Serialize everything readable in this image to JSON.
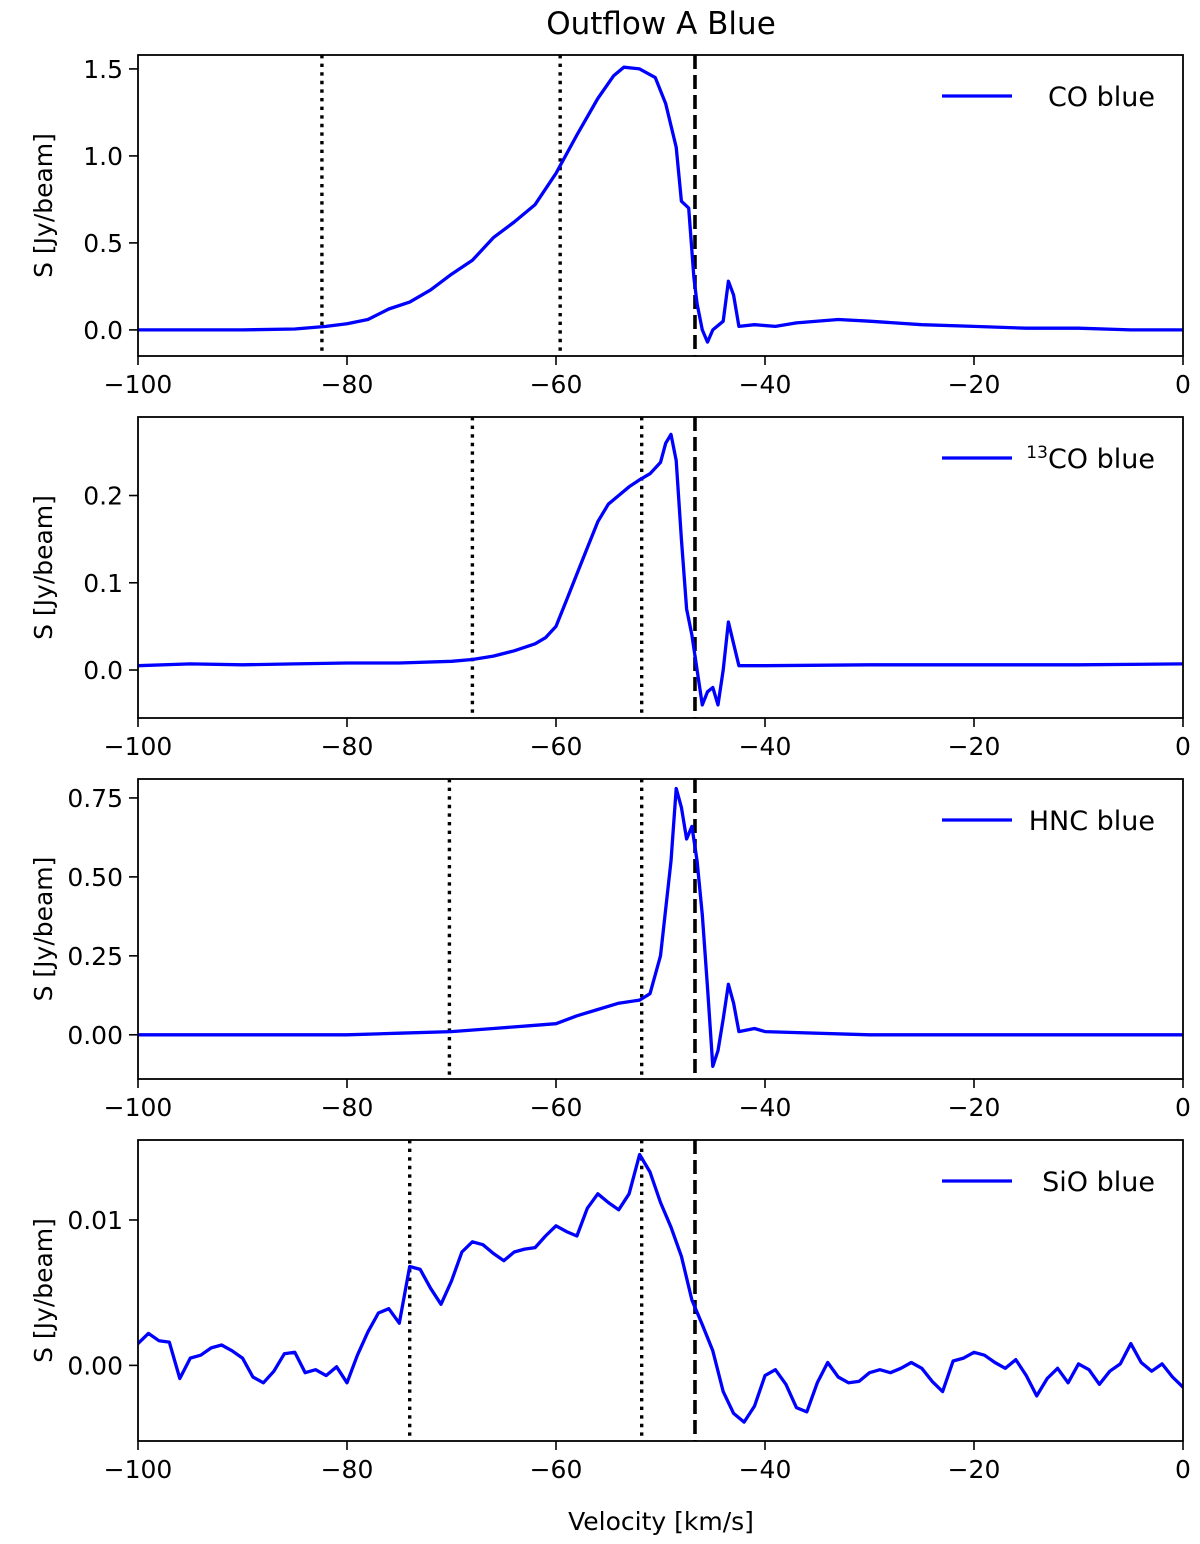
{
  "figure": {
    "title": "Outflow A Blue",
    "xlabel": "Velocity [km/s]"
  },
  "chart_data": [
    {
      "type": "line",
      "ylabel": "S [Jy/beam]",
      "xlim": [
        -100,
        0
      ],
      "ylim": [
        -0.15,
        1.58
      ],
      "x_ticks": [
        -100,
        -80,
        -60,
        -40,
        -20,
        0
      ],
      "x_tick_labels": [
        "−100",
        "−80",
        "−60",
        "−40",
        "−20",
        "0"
      ],
      "y_ticks": [
        0.0,
        0.5,
        1.0,
        1.5
      ],
      "y_tick_labels": [
        "0.0",
        "0.5",
        "1.0",
        "1.5"
      ],
      "legend_position": "top-right",
      "vlines": [
        {
          "x": -82.4,
          "style": "dotted"
        },
        {
          "x": -59.6,
          "style": "dotted"
        },
        {
          "x": -46.7,
          "style": "dashed"
        }
      ],
      "series": [
        {
          "name": "CO blue",
          "color": "#0000ff",
          "points": [
            [
              -100,
              0.0
            ],
            [
              -90,
              0.0
            ],
            [
              -85,
              0.005
            ],
            [
              -82,
              0.02
            ],
            [
              -80,
              0.035
            ],
            [
              -78,
              0.06
            ],
            [
              -76,
              0.12
            ],
            [
              -74,
              0.16
            ],
            [
              -72,
              0.23
            ],
            [
              -70,
              0.32
            ],
            [
              -68,
              0.4
            ],
            [
              -66,
              0.53
            ],
            [
              -64,
              0.62
            ],
            [
              -62,
              0.72
            ],
            [
              -60,
              0.9
            ],
            [
              -58,
              1.12
            ],
            [
              -56,
              1.33
            ],
            [
              -54.5,
              1.46
            ],
            [
              -53.5,
              1.51
            ],
            [
              -52,
              1.5
            ],
            [
              -50.5,
              1.45
            ],
            [
              -49.5,
              1.3
            ],
            [
              -48.5,
              1.05
            ],
            [
              -48,
              0.74
            ],
            [
              -47.3,
              0.7
            ],
            [
              -46.8,
              0.3
            ],
            [
              -46.5,
              0.15
            ],
            [
              -46,
              0.0
            ],
            [
              -45.5,
              -0.07
            ],
            [
              -45,
              0.0
            ],
            [
              -44,
              0.05
            ],
            [
              -43.5,
              0.28
            ],
            [
              -43,
              0.2
            ],
            [
              -42.5,
              0.02
            ],
            [
              -41,
              0.03
            ],
            [
              -39,
              0.02
            ],
            [
              -37,
              0.04
            ],
            [
              -33,
              0.06
            ],
            [
              -30,
              0.05
            ],
            [
              -25,
              0.03
            ],
            [
              -20,
              0.02
            ],
            [
              -15,
              0.01
            ],
            [
              -10,
              0.01
            ],
            [
              -5,
              0.0
            ],
            [
              0,
              0.0
            ]
          ]
        }
      ]
    },
    {
      "type": "line",
      "ylabel": "S [Jy/beam]",
      "xlim": [
        -100,
        0
      ],
      "ylim": [
        -0.055,
        0.29
      ],
      "x_ticks": [
        -100,
        -80,
        -60,
        -40,
        -20,
        0
      ],
      "x_tick_labels": [
        "−100",
        "−80",
        "−60",
        "−40",
        "−20",
        "0"
      ],
      "y_ticks": [
        0.0,
        0.1,
        0.2
      ],
      "y_tick_labels": [
        "0.0",
        "0.1",
        "0.2"
      ],
      "legend_position": "top-right",
      "vlines": [
        {
          "x": -68.0,
          "style": "dotted"
        },
        {
          "x": -51.8,
          "style": "dotted"
        },
        {
          "x": -46.7,
          "style": "dashed"
        }
      ],
      "series": [
        {
          "name": "<sup>13</sup>CO blue",
          "color": "#0000ff",
          "points": [
            [
              -100,
              0.005
            ],
            [
              -95,
              0.007
            ],
            [
              -90,
              0.006
            ],
            [
              -85,
              0.007
            ],
            [
              -80,
              0.008
            ],
            [
              -75,
              0.008
            ],
            [
              -70,
              0.01
            ],
            [
              -68,
              0.012
            ],
            [
              -66,
              0.016
            ],
            [
              -64,
              0.022
            ],
            [
              -62,
              0.03
            ],
            [
              -61,
              0.037
            ],
            [
              -60,
              0.05
            ],
            [
              -59,
              0.08
            ],
            [
              -58,
              0.11
            ],
            [
              -57,
              0.14
            ],
            [
              -56,
              0.17
            ],
            [
              -55,
              0.19
            ],
            [
              -54,
              0.2
            ],
            [
              -53,
              0.21
            ],
            [
              -52,
              0.218
            ],
            [
              -51,
              0.225
            ],
            [
              -50,
              0.238
            ],
            [
              -49.5,
              0.26
            ],
            [
              -49,
              0.27
            ],
            [
              -48.5,
              0.24
            ],
            [
              -48,
              0.15
            ],
            [
              -47.5,
              0.07
            ],
            [
              -47,
              0.04
            ],
            [
              -46.5,
              0.0
            ],
            [
              -46,
              -0.04
            ],
            [
              -45.5,
              -0.025
            ],
            [
              -45,
              -0.02
            ],
            [
              -44.5,
              -0.04
            ],
            [
              -44,
              0.0
            ],
            [
              -43.5,
              0.055
            ],
            [
              -43,
              0.03
            ],
            [
              -42.5,
              0.005
            ],
            [
              -40,
              0.005
            ],
            [
              -30,
              0.006
            ],
            [
              -20,
              0.006
            ],
            [
              -10,
              0.006
            ],
            [
              0,
              0.007
            ]
          ]
        }
      ]
    },
    {
      "type": "line",
      "ylabel": "S [Jy/beam]",
      "xlim": [
        -100,
        0
      ],
      "ylim": [
        -0.14,
        0.81
      ],
      "x_ticks": [
        -100,
        -80,
        -60,
        -40,
        -20,
        0
      ],
      "x_tick_labels": [
        "−100",
        "−80",
        "−60",
        "−40",
        "−20",
        "0"
      ],
      "y_ticks": [
        0.0,
        0.25,
        0.5,
        0.75
      ],
      "y_tick_labels": [
        "0.00",
        "0.25",
        "0.50",
        "0.75"
      ],
      "legend_position": "top-right",
      "vlines": [
        {
          "x": -70.2,
          "style": "dotted"
        },
        {
          "x": -51.8,
          "style": "dotted"
        },
        {
          "x": -46.7,
          "style": "dashed"
        }
      ],
      "series": [
        {
          "name": "HNC blue",
          "color": "#0000ff",
          "points": [
            [
              -100,
              0.0
            ],
            [
              -90,
              0.0
            ],
            [
              -80,
              0.0
            ],
            [
              -75,
              0.005
            ],
            [
              -70,
              0.01
            ],
            [
              -66,
              0.02
            ],
            [
              -62,
              0.03
            ],
            [
              -60,
              0.035
            ],
            [
              -58,
              0.06
            ],
            [
              -56,
              0.08
            ],
            [
              -54,
              0.1
            ],
            [
              -52,
              0.11
            ],
            [
              -51,
              0.13
            ],
            [
              -50,
              0.25
            ],
            [
              -49,
              0.55
            ],
            [
              -48.5,
              0.78
            ],
            [
              -48,
              0.72
            ],
            [
              -47.5,
              0.62
            ],
            [
              -47,
              0.66
            ],
            [
              -46.5,
              0.55
            ],
            [
              -46,
              0.38
            ],
            [
              -45.5,
              0.15
            ],
            [
              -45,
              -0.1
            ],
            [
              -44.5,
              -0.05
            ],
            [
              -44,
              0.05
            ],
            [
              -43.5,
              0.16
            ],
            [
              -43,
              0.1
            ],
            [
              -42.5,
              0.01
            ],
            [
              -41,
              0.02
            ],
            [
              -40,
              0.01
            ],
            [
              -30,
              0.0
            ],
            [
              -20,
              0.0
            ],
            [
              -10,
              0.0
            ],
            [
              0,
              0.0
            ]
          ]
        }
      ]
    },
    {
      "type": "line",
      "ylabel": "S [Jy/beam]",
      "xlim": [
        -100,
        0
      ],
      "ylim": [
        -0.0052,
        0.0155
      ],
      "x_ticks": [
        -100,
        -80,
        -60,
        -40,
        -20,
        0
      ],
      "x_tick_labels": [
        "−100",
        "−80",
        "−60",
        "−40",
        "−20",
        "0"
      ],
      "y_ticks": [
        0.0,
        0.01
      ],
      "y_tick_labels": [
        "0.00",
        "0.01"
      ],
      "legend_position": "top-right",
      "vlines": [
        {
          "x": -74.0,
          "style": "dotted"
        },
        {
          "x": -51.8,
          "style": "dotted"
        },
        {
          "x": -46.7,
          "style": "dashed"
        }
      ],
      "series": [
        {
          "name": "SiO blue",
          "color": "#0000ff",
          "points": [
            [
              -100,
              0.0015
            ],
            [
              -99,
              0.0022
            ],
            [
              -98,
              0.0017
            ],
            [
              -97,
              0.0016
            ],
            [
              -96,
              -0.0009
            ],
            [
              -95,
              0.0005
            ],
            [
              -94,
              0.0007
            ],
            [
              -93,
              0.0012
            ],
            [
              -92,
              0.0014
            ],
            [
              -91,
              0.001
            ],
            [
              -90,
              0.0005
            ],
            [
              -89,
              -0.0008
            ],
            [
              -88,
              -0.0012
            ],
            [
              -87,
              -0.0004
            ],
            [
              -86,
              0.0008
            ],
            [
              -85,
              0.0009
            ],
            [
              -84,
              -0.0005
            ],
            [
              -83,
              -0.0003
            ],
            [
              -82,
              -0.0007
            ],
            [
              -81,
              -0.0001
            ],
            [
              -80,
              -0.0012
            ],
            [
              -79,
              0.0007
            ],
            [
              -78,
              0.0023
            ],
            [
              -77,
              0.0036
            ],
            [
              -76,
              0.0039
            ],
            [
              -75,
              0.0029
            ],
            [
              -74,
              0.0068
            ],
            [
              -73,
              0.0066
            ],
            [
              -72,
              0.0053
            ],
            [
              -71,
              0.0042
            ],
            [
              -70,
              0.0058
            ],
            [
              -69,
              0.0078
            ],
            [
              -68,
              0.0085
            ],
            [
              -67,
              0.0083
            ],
            [
              -66,
              0.0077
            ],
            [
              -65,
              0.0072
            ],
            [
              -64,
              0.0078
            ],
            [
              -63,
              0.008
            ],
            [
              -62,
              0.0081
            ],
            [
              -61,
              0.0089
            ],
            [
              -60,
              0.0096
            ],
            [
              -59,
              0.0092
            ],
            [
              -58,
              0.0089
            ],
            [
              -57,
              0.0108
            ],
            [
              -56,
              0.0118
            ],
            [
              -55,
              0.0112
            ],
            [
              -54,
              0.0107
            ],
            [
              -53,
              0.0118
            ],
            [
              -52,
              0.0145
            ],
            [
              -51,
              0.0133
            ],
            [
              -50,
              0.0112
            ],
            [
              -49,
              0.0095
            ],
            [
              -48,
              0.0075
            ],
            [
              -47,
              0.0045
            ],
            [
              -46,
              0.0028
            ],
            [
              -45,
              0.001
            ],
            [
              -44,
              -0.0018
            ],
            [
              -43,
              -0.0033
            ],
            [
              -42,
              -0.0039
            ],
            [
              -41,
              -0.0028
            ],
            [
              -40,
              -0.0007
            ],
            [
              -39,
              -0.0003
            ],
            [
              -38,
              -0.0013
            ],
            [
              -37,
              -0.0029
            ],
            [
              -36,
              -0.0032
            ],
            [
              -35,
              -0.0012
            ],
            [
              -34,
              0.0002
            ],
            [
              -33,
              -0.0008
            ],
            [
              -32,
              -0.0012
            ],
            [
              -31,
              -0.0011
            ],
            [
              -30,
              -0.0005
            ],
            [
              -29,
              -0.0003
            ],
            [
              -28,
              -0.0005
            ],
            [
              -27,
              -0.0002
            ],
            [
              -26,
              0.0002
            ],
            [
              -25,
              -0.0002
            ],
            [
              -24,
              -0.0011
            ],
            [
              -23,
              -0.0018
            ],
            [
              -22,
              0.0003
            ],
            [
              -21,
              0.0005
            ],
            [
              -20,
              0.0009
            ],
            [
              -19,
              0.0007
            ],
            [
              -18,
              0.0002
            ],
            [
              -17,
              -0.0002
            ],
            [
              -16,
              0.0004
            ],
            [
              -15,
              -0.0007
            ],
            [
              -14,
              -0.0021
            ],
            [
              -13,
              -0.0009
            ],
            [
              -12,
              -0.0002
            ],
            [
              -11,
              -0.0012
            ],
            [
              -10,
              0.0001
            ],
            [
              -9,
              -0.0003
            ],
            [
              -8,
              -0.0013
            ],
            [
              -7,
              -0.0004
            ],
            [
              -6,
              0.0001
            ],
            [
              -5,
              0.0015
            ],
            [
              -4,
              0.0002
            ],
            [
              -3,
              -0.0004
            ],
            [
              -2,
              0.0001
            ],
            [
              -1,
              -0.0008
            ],
            [
              0,
              -0.0015
            ]
          ]
        }
      ]
    }
  ]
}
